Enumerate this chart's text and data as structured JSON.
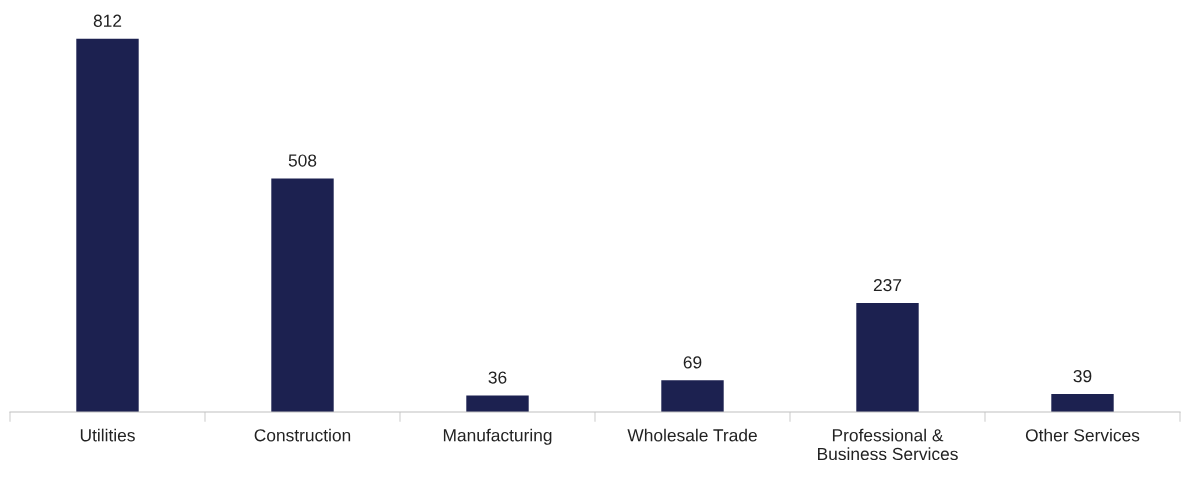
{
  "chart_data": {
    "type": "bar",
    "categories": [
      "Utilities",
      "Construction",
      "Manufacturing",
      "Wholesale Trade",
      "Professional &\nBusiness Services",
      "Other Services"
    ],
    "values": [
      812,
      508,
      36,
      69,
      237,
      39
    ],
    "color": "#1c2150",
    "data_labels": true,
    "tick_labels": "x"
  }
}
